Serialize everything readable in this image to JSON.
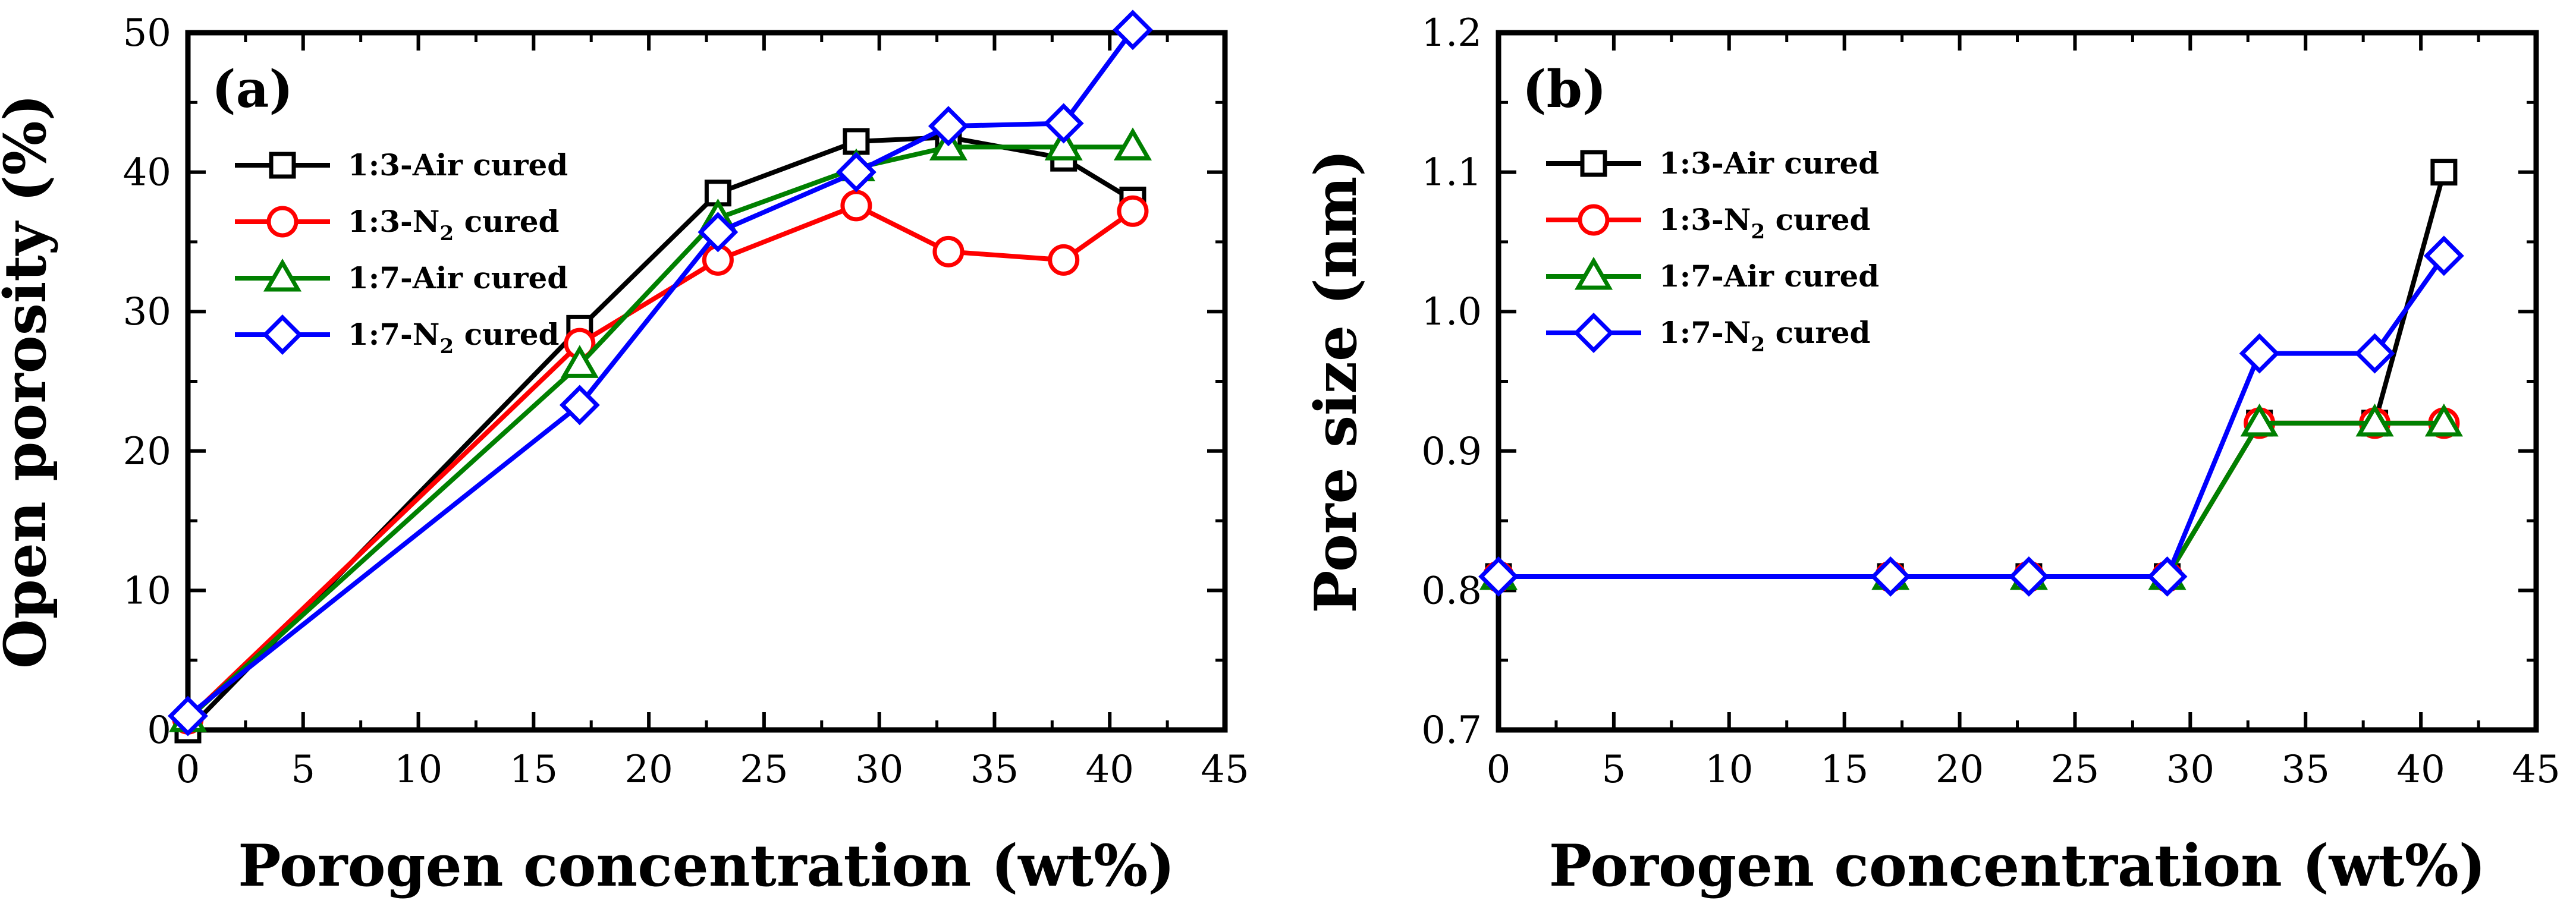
{
  "chart_data": [
    {
      "type": "line",
      "panel_label": "(a)",
      "xlabel": "Porogen concentration (wt%)",
      "ylabel": "Open porosity (%)",
      "xlim": [
        0,
        45
      ],
      "ylim": [
        0,
        50
      ],
      "x_ticks": [
        0,
        5,
        10,
        15,
        20,
        25,
        30,
        35,
        40,
        45
      ],
      "y_ticks": [
        0,
        10,
        20,
        30,
        40,
        50
      ],
      "legend_position": "upper-left",
      "series": [
        {
          "name": "1:3-Air cured",
          "name_main": "1:3-Air cured",
          "name_sub": "",
          "name_tail": "",
          "color": "#000000",
          "marker": "square",
          "x": [
            0,
            17,
            23,
            29,
            33,
            38,
            41
          ],
          "y": [
            0,
            28.8,
            38.5,
            42.2,
            42.5,
            41.0,
            38.0
          ]
        },
        {
          "name": "1:3-N2 cured",
          "name_main": "1:3-N",
          "name_sub": "2",
          "name_tail": " cured",
          "color": "#ff0000",
          "marker": "circle",
          "x": [
            0,
            17,
            23,
            29,
            33,
            38,
            41
          ],
          "y": [
            0.8,
            27.7,
            33.7,
            37.6,
            34.3,
            33.7,
            37.2
          ]
        },
        {
          "name": "1:7-Air cured",
          "name_main": "1:7-Air cured",
          "name_sub": "",
          "name_tail": "",
          "color": "#008000",
          "marker": "triangle",
          "x": [
            0,
            17,
            23,
            29,
            33,
            38,
            41
          ],
          "y": [
            0.8,
            26.2,
            36.7,
            40.3,
            41.8,
            41.8,
            41.8
          ]
        },
        {
          "name": "1:7-N2 cured",
          "name_main": "1:7-N",
          "name_sub": "2",
          "name_tail": " cured",
          "color": "#0000ff",
          "marker": "diamond",
          "x": [
            0,
            17,
            23,
            29,
            33,
            38,
            41
          ],
          "y": [
            1.0,
            23.3,
            35.7,
            40.0,
            43.3,
            43.5,
            50.2
          ]
        }
      ]
    },
    {
      "type": "line",
      "panel_label": "(b)",
      "xlabel": "Porogen concentration (wt%)",
      "ylabel": "Pore size (nm)",
      "xlim": [
        0,
        45
      ],
      "ylim": [
        0.7,
        1.2
      ],
      "x_ticks": [
        0,
        5,
        10,
        15,
        20,
        25,
        30,
        35,
        40,
        45
      ],
      "y_ticks": [
        0.7,
        0.8,
        0.9,
        1.0,
        1.1,
        1.2
      ],
      "legend_position": "upper-left",
      "series": [
        {
          "name": "1:3-Air cured",
          "name_main": "1:3-Air cured",
          "name_sub": "",
          "name_tail": "",
          "color": "#000000",
          "marker": "square",
          "x": [
            0,
            17,
            23,
            29,
            33,
            38,
            41
          ],
          "y": [
            0.81,
            0.81,
            0.81,
            0.81,
            0.92,
            0.92,
            1.1
          ]
        },
        {
          "name": "1:3-N2 cured",
          "name_main": "1:3-N",
          "name_sub": "2",
          "name_tail": " cured",
          "color": "#ff0000",
          "marker": "circle",
          "x": [
            0,
            17,
            23,
            29,
            33,
            38,
            41
          ],
          "y": [
            0.81,
            0.81,
            0.81,
            0.81,
            0.92,
            0.92,
            0.92
          ]
        },
        {
          "name": "1:7-Air cured",
          "name_main": "1:7-Air cured",
          "name_sub": "",
          "name_tail": "",
          "color": "#008000",
          "marker": "triangle",
          "x": [
            0,
            17,
            23,
            29,
            33,
            38,
            41
          ],
          "y": [
            0.81,
            0.81,
            0.81,
            0.81,
            0.92,
            0.92,
            0.92
          ]
        },
        {
          "name": "1:7-N2 cured",
          "name_main": "1:7-N",
          "name_sub": "2",
          "name_tail": " cured",
          "color": "#0000ff",
          "marker": "diamond",
          "x": [
            0,
            17,
            23,
            29,
            33,
            38,
            41
          ],
          "y": [
            0.81,
            0.81,
            0.81,
            0.81,
            0.97,
            0.97,
            1.04
          ]
        }
      ]
    }
  ]
}
